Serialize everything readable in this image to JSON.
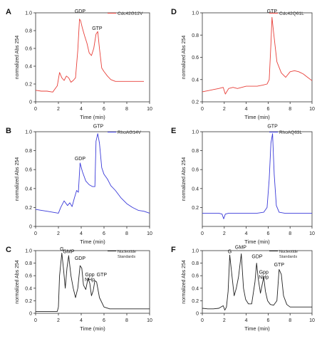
{
  "chart_data": [
    {
      "type": "line",
      "panel_letter": "A",
      "legend": "Cdc42G12V",
      "color": "#e8403a",
      "xlabel": "Time (min)",
      "ylabel": "normalized Abs 254",
      "xlim": [
        0,
        10
      ],
      "ylim": [
        0,
        1.0
      ],
      "xticks": [
        0,
        2,
        4,
        6,
        8,
        10
      ],
      "yticks": [
        0,
        0.2,
        0.4,
        0.6,
        0.8,
        1.0
      ],
      "ytick_labels": [
        "0",
        "0.2",
        "0.4",
        "0.6",
        "0.8",
        "1.0"
      ],
      "annotations": [
        {
          "text": "GDP",
          "x": 3.9,
          "y": 1.0
        },
        {
          "text": "GTP",
          "x": 5.4,
          "y": 0.81
        }
      ],
      "series": [
        {
          "x": [
            0,
            0.5,
            1.0,
            1.5,
            1.9,
            2.1,
            2.3,
            2.5,
            2.7,
            2.9,
            3.1,
            3.3,
            3.5,
            3.7,
            3.85,
            3.95,
            4.1,
            4.3,
            4.5,
            4.7,
            4.9,
            5.1,
            5.3,
            5.45,
            5.6,
            5.8,
            6.0,
            6.3,
            6.6,
            7.0,
            7.5,
            8.0,
            8.5,
            9.0,
            9.5
          ],
          "y": [
            0.13,
            0.12,
            0.12,
            0.11,
            0.18,
            0.33,
            0.27,
            0.24,
            0.29,
            0.27,
            0.22,
            0.24,
            0.27,
            0.58,
            0.93,
            0.91,
            0.83,
            0.74,
            0.66,
            0.55,
            0.52,
            0.6,
            0.76,
            0.79,
            0.6,
            0.38,
            0.34,
            0.29,
            0.25,
            0.23,
            0.23,
            0.23,
            0.23,
            0.23,
            0.23
          ]
        }
      ]
    },
    {
      "type": "line",
      "panel_letter": "B",
      "legend": "RhoAG14V",
      "color": "#3a3ad9",
      "xlabel": "Time (min)",
      "ylabel": "normalized Abs 254",
      "xlim": [
        0,
        10
      ],
      "ylim": [
        0,
        1.0
      ],
      "xticks": [
        0,
        2,
        4,
        6,
        8,
        10
      ],
      "yticks": [
        0,
        0.2,
        0.4,
        0.6,
        0.8,
        1.0
      ],
      "ytick_labels": [
        "0",
        "0.2",
        "0.4",
        "0.6",
        "0.8",
        "1.0"
      ],
      "annotations": [
        {
          "text": "GTP",
          "x": 5.5,
          "y": 1.04
        },
        {
          "text": "GDP",
          "x": 3.9,
          "y": 0.7
        }
      ],
      "series": [
        {
          "x": [
            0,
            0.5,
            1.0,
            1.5,
            2.0,
            2.2,
            2.5,
            2.8,
            3.0,
            3.2,
            3.4,
            3.6,
            3.75,
            3.9,
            4.1,
            4.4,
            4.7,
            5.0,
            5.2,
            5.3,
            5.45,
            5.6,
            5.8,
            6.0,
            6.3,
            6.6,
            7.0,
            7.5,
            8.0,
            8.5,
            9.0,
            9.5,
            10.0
          ],
          "y": [
            0.18,
            0.17,
            0.16,
            0.15,
            0.14,
            0.2,
            0.27,
            0.22,
            0.25,
            0.21,
            0.3,
            0.38,
            0.36,
            0.67,
            0.58,
            0.48,
            0.44,
            0.42,
            0.42,
            0.9,
            0.98,
            0.88,
            0.62,
            0.55,
            0.5,
            0.43,
            0.38,
            0.3,
            0.24,
            0.2,
            0.17,
            0.16,
            0.14
          ]
        }
      ]
    },
    {
      "type": "line",
      "panel_letter": "C",
      "legend": "Nucleotide Standards",
      "color": "#222222",
      "xlabel": "Time (min)",
      "ylabel": "normalized Abs 254",
      "xlim": [
        0,
        10
      ],
      "ylim": [
        0,
        1.0
      ],
      "xticks": [
        0,
        2,
        4,
        6,
        8,
        10
      ],
      "yticks": [
        0,
        0.2,
        0.4,
        0.6,
        0.8,
        1.0
      ],
      "ytick_labels": [
        "0",
        "0.2",
        "0.4",
        "0.6",
        "0.8",
        "1.0"
      ],
      "annotations": [
        {
          "text": "G",
          "x": 2.3,
          "y": 1.0
        },
        {
          "text": "GMP",
          "x": 2.9,
          "y": 0.96
        },
        {
          "text": "GDP",
          "x": 3.9,
          "y": 0.85
        },
        {
          "text": "Gpp",
          "x": 4.75,
          "y": 0.59
        },
        {
          "text": "NHp",
          "x": 4.75,
          "y": 0.51
        },
        {
          "text": "GTP",
          "x": 5.8,
          "y": 0.59
        }
      ],
      "series": [
        {
          "x": [
            0,
            0.5,
            1.0,
            1.5,
            1.9,
            2.0,
            2.1,
            2.3,
            2.45,
            2.6,
            2.75,
            2.9,
            3.1,
            3.3,
            3.5,
            3.7,
            3.9,
            4.05,
            4.2,
            4.4,
            4.6,
            4.75,
            4.9,
            5.05,
            5.2,
            5.35,
            5.6,
            6.0,
            6.5,
            7.0,
            8.0,
            9.0,
            10.0
          ],
          "y": [
            0.03,
            0.03,
            0.03,
            0.03,
            0.03,
            0.1,
            0.6,
            0.96,
            0.7,
            0.4,
            0.72,
            0.92,
            0.6,
            0.4,
            0.25,
            0.4,
            0.76,
            0.72,
            0.45,
            0.38,
            0.56,
            0.48,
            0.28,
            0.36,
            0.52,
            0.5,
            0.25,
            0.1,
            0.07,
            0.07,
            0.07,
            0.07,
            0.07
          ]
        }
      ]
    },
    {
      "type": "line",
      "panel_letter": "D",
      "legend": "Cdc42Q61L",
      "color": "#e8403a",
      "xlabel": "Time (min)",
      "ylabel": "normalized Abs 254",
      "xlim": [
        0,
        10
      ],
      "ylim": [
        0.2,
        1.0
      ],
      "xticks": [
        0,
        2,
        4,
        6,
        8,
        10
      ],
      "yticks": [
        0.2,
        0.4,
        0.6,
        0.8,
        1.0
      ],
      "ytick_labels": [
        "0.2",
        "0.4",
        "0.6",
        "0.8",
        "1.0"
      ],
      "annotations": [
        {
          "text": "GTP",
          "x": 6.35,
          "y": 1.0
        }
      ],
      "series": [
        {
          "x": [
            0,
            0.5,
            1.0,
            1.5,
            1.9,
            2.1,
            2.4,
            2.8,
            3.2,
            3.6,
            4.0,
            4.5,
            5.0,
            5.5,
            5.9,
            6.1,
            6.25,
            6.35,
            6.5,
            6.8,
            7.2,
            7.6,
            8.0,
            8.4,
            8.8,
            9.2,
            9.6,
            10.0
          ],
          "y": [
            0.29,
            0.3,
            0.31,
            0.32,
            0.33,
            0.27,
            0.32,
            0.33,
            0.32,
            0.33,
            0.34,
            0.34,
            0.34,
            0.35,
            0.36,
            0.4,
            0.72,
            0.96,
            0.82,
            0.56,
            0.46,
            0.42,
            0.47,
            0.48,
            0.47,
            0.45,
            0.42,
            0.39
          ]
        }
      ]
    },
    {
      "type": "line",
      "panel_letter": "E",
      "legend": "RhoAQ63L",
      "color": "#3a3ad9",
      "xlabel": "Time (min)",
      "ylabel": "normalized Abs 254",
      "xlim": [
        0,
        10
      ],
      "ylim": [
        0,
        1.0
      ],
      "xticks": [
        0,
        2,
        4,
        6,
        8,
        10
      ],
      "yticks": [
        0.2,
        0.4,
        0.6,
        0.8,
        1.0
      ],
      "ytick_labels": [
        "0.2",
        "0.4",
        "0.6",
        "0.8",
        "1.0"
      ],
      "annotations": [
        {
          "text": "GTP",
          "x": 6.4,
          "y": 1.04
        }
      ],
      "series": [
        {
          "x": [
            0,
            0.5,
            1.0,
            1.5,
            1.8,
            1.95,
            2.1,
            2.4,
            3.0,
            4.0,
            5.0,
            5.6,
            5.9,
            6.1,
            6.25,
            6.4,
            6.55,
            6.75,
            7.0,
            7.5,
            8.0,
            9.0,
            10.0
          ],
          "y": [
            0.14,
            0.14,
            0.14,
            0.14,
            0.13,
            0.08,
            0.13,
            0.14,
            0.14,
            0.14,
            0.14,
            0.15,
            0.2,
            0.5,
            0.88,
            0.98,
            0.55,
            0.22,
            0.15,
            0.14,
            0.14,
            0.14,
            0.14
          ]
        }
      ]
    },
    {
      "type": "line",
      "panel_letter": "F",
      "legend": "Nucleotide Standards",
      "color": "#222222",
      "xlabel": "Time (min)",
      "ylabel": "normalized Abs 254",
      "xlim": [
        0,
        10
      ],
      "ylim": [
        0,
        1.0
      ],
      "xticks": [
        0,
        2,
        4,
        6,
        8,
        10
      ],
      "yticks": [
        0,
        0.2,
        0.4,
        0.6,
        0.8,
        1.0
      ],
      "ytick_labels": [
        "0",
        "0.2",
        "0.4",
        "0.6",
        "0.8",
        "1.0"
      ],
      "annotations": [
        {
          "text": "G",
          "x": 2.5,
          "y": 0.96
        },
        {
          "text": "GMP",
          "x": 3.5,
          "y": 1.03
        },
        {
          "text": "GDP",
          "x": 5.0,
          "y": 0.88
        },
        {
          "text": "Gpp",
          "x": 5.6,
          "y": 0.63
        },
        {
          "text": "NHp",
          "x": 5.6,
          "y": 0.55
        },
        {
          "text": "GTP",
          "x": 7.0,
          "y": 0.75
        }
      ],
      "series": [
        {
          "x": [
            0,
            0.5,
            1.0,
            1.5,
            1.9,
            2.05,
            2.2,
            2.35,
            2.5,
            2.7,
            2.9,
            3.1,
            3.3,
            3.55,
            3.75,
            3.95,
            4.2,
            4.5,
            4.8,
            4.95,
            5.1,
            5.3,
            5.45,
            5.6,
            5.75,
            5.95,
            6.2,
            6.5,
            6.8,
            7.0,
            7.2,
            7.4,
            7.7,
            8.0,
            9.0,
            10.0
          ],
          "y": [
            0.08,
            0.07,
            0.07,
            0.08,
            0.12,
            0.05,
            0.1,
            0.35,
            0.93,
            0.6,
            0.28,
            0.4,
            0.58,
            0.95,
            0.4,
            0.22,
            0.15,
            0.15,
            0.5,
            0.8,
            0.55,
            0.32,
            0.45,
            0.58,
            0.35,
            0.2,
            0.14,
            0.13,
            0.2,
            0.7,
            0.62,
            0.28,
            0.14,
            0.1,
            0.1,
            0.1
          ]
        }
      ]
    }
  ]
}
